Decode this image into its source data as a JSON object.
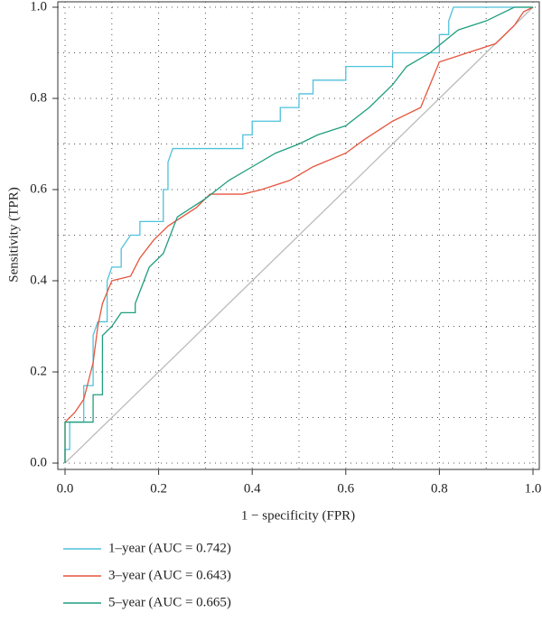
{
  "chart_data": {
    "type": "line",
    "x_label": "1 − specificity (FPR)",
    "y_label": "Sensitivity (TPR)",
    "xlim": [
      0,
      1
    ],
    "ylim": [
      0,
      1
    ],
    "xticks": [
      {
        "value": 0,
        "label": "0.0"
      },
      0.2,
      0.4,
      0.6,
      0.8,
      {
        "value": 1,
        "label": "1.0"
      }
    ],
    "yticks": [
      {
        "value": 0,
        "label": "0.0"
      },
      0.2,
      0.4,
      0.6,
      0.8,
      {
        "value": 1,
        "label": "1.0"
      }
    ],
    "grid": [
      0,
      0.1,
      0.2,
      0.3,
      0.4,
      0.5,
      0.6,
      0.7,
      0.8,
      0.9,
      1
    ],
    "reference_line": {
      "x": [
        0,
        1
      ],
      "values": [
        0,
        1
      ],
      "color": "#bbbbbb"
    },
    "series": [
      {
        "name": "1–year (AUC = 0.742)",
        "color": "#4fc1dc",
        "x": [
          0,
          0,
          0.01,
          0.01,
          0.04,
          0.04,
          0.06,
          0.06,
          0.07,
          0.09,
          0.09,
          0.1,
          0.12,
          0.12,
          0.14,
          0.16,
          0.16,
          0.18,
          0.21,
          0.21,
          0.22,
          0.22,
          0.23,
          0.38,
          0.38,
          0.4,
          0.4,
          0.46,
          0.46,
          0.5,
          0.5,
          0.53,
          0.53,
          0.6,
          0.6,
          0.7,
          0.7,
          0.8,
          0.8,
          0.82,
          0.82,
          0.83,
          1
        ],
        "values": [
          0,
          0.03,
          0.03,
          0.09,
          0.09,
          0.17,
          0.17,
          0.28,
          0.31,
          0.31,
          0.4,
          0.43,
          0.43,
          0.47,
          0.5,
          0.5,
          0.53,
          0.53,
          0.53,
          0.6,
          0.6,
          0.66,
          0.69,
          0.69,
          0.72,
          0.72,
          0.75,
          0.75,
          0.78,
          0.78,
          0.81,
          0.81,
          0.84,
          0.84,
          0.87,
          0.87,
          0.9,
          0.9,
          0.94,
          0.94,
          0.97,
          1,
          1
        ]
      },
      {
        "name": "3–year (AUC = 0.643)",
        "color": "#e5553c",
        "x": [
          0,
          0,
          0.02,
          0.04,
          0.05,
          0.06,
          0.07,
          0.08,
          0.1,
          0.14,
          0.16,
          0.19,
          0.22,
          0.28,
          0.31,
          0.38,
          0.42,
          0.48,
          0.53,
          0.6,
          0.64,
          0.7,
          0.76,
          0.8,
          0.86,
          0.92,
          0.96,
          0.98,
          1
        ],
        "values": [
          0,
          0.09,
          0.11,
          0.14,
          0.18,
          0.22,
          0.3,
          0.35,
          0.4,
          0.41,
          0.45,
          0.49,
          0.52,
          0.56,
          0.59,
          0.59,
          0.6,
          0.62,
          0.65,
          0.68,
          0.71,
          0.75,
          0.78,
          0.88,
          0.9,
          0.92,
          0.96,
          0.99,
          1
        ]
      },
      {
        "name": "5–year (AUC = 0.665)",
        "color": "#1f9e7e",
        "x": [
          0,
          0,
          0.06,
          0.06,
          0.08,
          0.08,
          0.1,
          0.12,
          0.15,
          0.15,
          0.18,
          0.21,
          0.24,
          0.3,
          0.35,
          0.4,
          0.45,
          0.5,
          0.54,
          0.6,
          0.65,
          0.7,
          0.73,
          0.78,
          0.84,
          0.9,
          0.96,
          1
        ],
        "values": [
          0,
          0.09,
          0.09,
          0.15,
          0.15,
          0.28,
          0.3,
          0.33,
          0.33,
          0.35,
          0.43,
          0.46,
          0.54,
          0.58,
          0.62,
          0.65,
          0.68,
          0.7,
          0.72,
          0.74,
          0.78,
          0.83,
          0.87,
          0.9,
          0.95,
          0.97,
          1,
          1
        ]
      }
    ]
  }
}
